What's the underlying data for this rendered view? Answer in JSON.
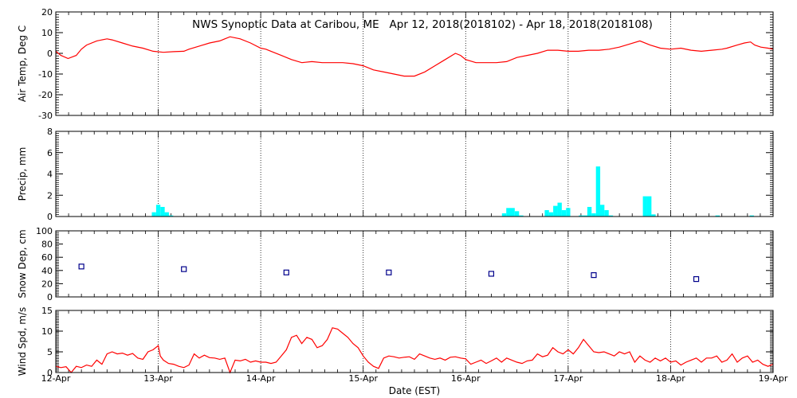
{
  "title": "NWS Synoptic Data at Caribou, ME   Apr 12, 2018(2018102) - Apr 18, 2018(2018108)",
  "xlabel": "Date (EST)",
  "x_ticks": [
    "12-Apr",
    "13-Apr",
    "14-Apr",
    "15-Apr",
    "16-Apr",
    "17-Apr",
    "18-Apr",
    "19-Apr"
  ],
  "colors": {
    "temp": "#ff0000",
    "precip": "#00ffff",
    "snow": "#00008b",
    "wind": "#ff0000",
    "axis": "#000000"
  },
  "chart_data": [
    {
      "type": "line",
      "ylabel": "Air Temp, Deg C",
      "ylim": [
        -30,
        20
      ],
      "yticks": [
        -30,
        -20,
        -10,
        0,
        10,
        20
      ],
      "x_unit": "days since 12-Apr 00:00 EST",
      "series": [
        {
          "points": [
            [
              0,
              1
            ],
            [
              0.05,
              -1
            ],
            [
              0.12,
              -2.5
            ],
            [
              0.2,
              -1
            ],
            [
              0.25,
              2
            ],
            [
              0.3,
              4
            ],
            [
              0.4,
              6
            ],
            [
              0.5,
              7
            ],
            [
              0.55,
              6.5
            ],
            [
              0.65,
              5
            ],
            [
              0.75,
              3.5
            ],
            [
              0.85,
              2.5
            ],
            [
              0.95,
              1
            ],
            [
              1.05,
              0.5
            ],
            [
              1.15,
              0.8
            ],
            [
              1.25,
              1
            ],
            [
              1.3,
              2
            ],
            [
              1.4,
              3.5
            ],
            [
              1.5,
              5
            ],
            [
              1.6,
              6
            ],
            [
              1.65,
              7
            ],
            [
              1.7,
              8
            ],
            [
              1.8,
              7
            ],
            [
              1.9,
              5
            ],
            [
              2.0,
              2.5
            ],
            [
              2.05,
              2
            ],
            [
              2.1,
              1
            ],
            [
              2.2,
              -1
            ],
            [
              2.3,
              -3
            ],
            [
              2.4,
              -4.5
            ],
            [
              2.5,
              -4
            ],
            [
              2.6,
              -4.5
            ],
            [
              2.7,
              -4.5
            ],
            [
              2.8,
              -4.5
            ],
            [
              2.9,
              -5
            ],
            [
              3.0,
              -6
            ],
            [
              3.1,
              -8
            ],
            [
              3.2,
              -9
            ],
            [
              3.3,
              -10
            ],
            [
              3.4,
              -11
            ],
            [
              3.5,
              -11
            ],
            [
              3.6,
              -9
            ],
            [
              3.7,
              -6
            ],
            [
              3.8,
              -3
            ],
            [
              3.9,
              0
            ],
            [
              3.95,
              -1
            ],
            [
              4.0,
              -3
            ],
            [
              4.1,
              -4.5
            ],
            [
              4.2,
              -4.5
            ],
            [
              4.3,
              -4.5
            ],
            [
              4.4,
              -4
            ],
            [
              4.5,
              -2
            ],
            [
              4.6,
              -1
            ],
            [
              4.7,
              0
            ],
            [
              4.8,
              1.5
            ],
            [
              4.9,
              1.5
            ],
            [
              5.0,
              1
            ],
            [
              5.1,
              1
            ],
            [
              5.2,
              1.5
            ],
            [
              5.3,
              1.5
            ],
            [
              5.4,
              2
            ],
            [
              5.5,
              3
            ],
            [
              5.6,
              4.5
            ],
            [
              5.7,
              6
            ],
            [
              5.8,
              4
            ],
            [
              5.9,
              2.5
            ],
            [
              6.0,
              2
            ],
            [
              6.1,
              2.5
            ],
            [
              6.2,
              1.5
            ],
            [
              6.3,
              1
            ],
            [
              6.4,
              1.5
            ],
            [
              6.5,
              2
            ],
            [
              6.55,
              2.5
            ],
            [
              6.65,
              4
            ],
            [
              6.72,
              5
            ],
            [
              6.78,
              5.5
            ],
            [
              6.82,
              4
            ],
            [
              6.88,
              3
            ],
            [
              6.95,
              2.5
            ],
            [
              7.0,
              2
            ]
          ]
        }
      ]
    },
    {
      "type": "bar",
      "ylabel": "Precip, mm",
      "ylim": [
        0,
        8
      ],
      "yticks": [
        0,
        2,
        4,
        6,
        8
      ],
      "x_unit": "days since 12-Apr 00:00 EST",
      "bar_width_days": 0.0417,
      "series": [
        {
          "points": [
            [
              0.958,
              0.4
            ],
            [
              1.0,
              1.1
            ],
            [
              1.042,
              0.9
            ],
            [
              1.083,
              0.4
            ],
            [
              1.125,
              0.1
            ],
            [
              4.375,
              0.3
            ],
            [
              4.417,
              0.8
            ],
            [
              4.458,
              0.8
            ],
            [
              4.5,
              0.5
            ],
            [
              4.542,
              0.1
            ],
            [
              4.792,
              0.6
            ],
            [
              4.833,
              0.4
            ],
            [
              4.875,
              1.0
            ],
            [
              4.917,
              1.3
            ],
            [
              4.958,
              0.6
            ],
            [
              5.0,
              0.8
            ],
            [
              5.125,
              0.1
            ],
            [
              5.167,
              0.1
            ],
            [
              5.208,
              0.9
            ],
            [
              5.25,
              0.3
            ],
            [
              5.292,
              4.7
            ],
            [
              5.333,
              1.1
            ],
            [
              5.375,
              0.6
            ],
            [
              5.417,
              0.1
            ],
            [
              5.75,
              1.9
            ],
            [
              5.792,
              1.9
            ],
            [
              5.833,
              0.2
            ],
            [
              6.458,
              0.1
            ],
            [
              6.792,
              0.1
            ]
          ]
        }
      ]
    },
    {
      "type": "scatter",
      "ylabel": "Snow Dep, cm",
      "ylim": [
        0,
        100
      ],
      "yticks": [
        0,
        20,
        40,
        60,
        80,
        100
      ],
      "x_unit": "days since 12-Apr 00:00 EST",
      "series": [
        {
          "points": [
            [
              0.25,
              46
            ],
            [
              1.25,
              42
            ],
            [
              2.25,
              37
            ],
            [
              3.25,
              37
            ],
            [
              4.25,
              35
            ],
            [
              5.25,
              33
            ],
            [
              6.25,
              27
            ]
          ]
        }
      ]
    },
    {
      "type": "line",
      "ylabel": "Wind Spd, m/s",
      "ylim": [
        0,
        15
      ],
      "yticks": [
        0,
        5,
        10,
        15
      ],
      "x_unit": "days since 12-Apr 00:00 EST",
      "series": [
        {
          "points": [
            [
              0,
              1.5
            ],
            [
              0.05,
              1.2
            ],
            [
              0.1,
              1.4
            ],
            [
              0.15,
              0
            ],
            [
              0.2,
              1.5
            ],
            [
              0.25,
              1.2
            ],
            [
              0.3,
              1.8
            ],
            [
              0.35,
              1.5
            ],
            [
              0.4,
              3
            ],
            [
              0.45,
              2
            ],
            [
              0.5,
              4.5
            ],
            [
              0.55,
              5
            ],
            [
              0.6,
              4.5
            ],
            [
              0.65,
              4.7
            ],
            [
              0.7,
              4.2
            ],
            [
              0.75,
              4.6
            ],
            [
              0.8,
              3.5
            ],
            [
              0.85,
              3.2
            ],
            [
              0.9,
              5
            ],
            [
              0.95,
              5.5
            ],
            [
              1.0,
              6.5
            ],
            [
              1.02,
              4
            ],
            [
              1.05,
              3
            ],
            [
              1.1,
              2.2
            ],
            [
              1.15,
              2
            ],
            [
              1.2,
              1.5
            ],
            [
              1.25,
              1.2
            ],
            [
              1.3,
              1.8
            ],
            [
              1.35,
              4.5
            ],
            [
              1.4,
              3.5
            ],
            [
              1.45,
              4.2
            ],
            [
              1.5,
              3.6
            ],
            [
              1.55,
              3.5
            ],
            [
              1.6,
              3.2
            ],
            [
              1.65,
              3.5
            ],
            [
              1.7,
              0
            ],
            [
              1.75,
              3
            ],
            [
              1.8,
              2.8
            ],
            [
              1.85,
              3.2
            ],
            [
              1.9,
              2.5
            ],
            [
              1.95,
              2.8
            ],
            [
              2.0,
              2.5
            ],
            [
              2.05,
              2.5
            ],
            [
              2.1,
              2.2
            ],
            [
              2.15,
              2.5
            ],
            [
              2.2,
              4
            ],
            [
              2.25,
              5.5
            ],
            [
              2.3,
              8.5
            ],
            [
              2.35,
              9
            ],
            [
              2.4,
              7
            ],
            [
              2.45,
              8.5
            ],
            [
              2.5,
              8
            ],
            [
              2.55,
              6
            ],
            [
              2.6,
              6.5
            ],
            [
              2.65,
              8
            ],
            [
              2.7,
              10.8
            ],
            [
              2.75,
              10.5
            ],
            [
              2.8,
              9.5
            ],
            [
              2.85,
              8.5
            ],
            [
              2.9,
              7
            ],
            [
              2.95,
              6
            ],
            [
              3.0,
              4
            ],
            [
              3.05,
              2.5
            ],
            [
              3.1,
              1.5
            ],
            [
              3.15,
              1
            ],
            [
              3.2,
              3.5
            ],
            [
              3.25,
              4
            ],
            [
              3.3,
              3.8
            ],
            [
              3.35,
              3.5
            ],
            [
              3.4,
              3.7
            ],
            [
              3.45,
              3.8
            ],
            [
              3.5,
              3.2
            ],
            [
              3.55,
              4.5
            ],
            [
              3.6,
              4
            ],
            [
              3.65,
              3.5
            ],
            [
              3.7,
              3.2
            ],
            [
              3.75,
              3.5
            ],
            [
              3.8,
              3
            ],
            [
              3.85,
              3.7
            ],
            [
              3.9,
              3.8
            ],
            [
              3.95,
              3.5
            ],
            [
              4.0,
              3.3
            ],
            [
              4.05,
              2
            ],
            [
              4.1,
              2.5
            ],
            [
              4.15,
              3
            ],
            [
              4.2,
              2.2
            ],
            [
              4.25,
              2.8
            ],
            [
              4.3,
              3.5
            ],
            [
              4.35,
              2.5
            ],
            [
              4.4,
              3.5
            ],
            [
              4.45,
              3
            ],
            [
              4.5,
              2.5
            ],
            [
              4.55,
              2.2
            ],
            [
              4.6,
              2.8
            ],
            [
              4.65,
              3
            ],
            [
              4.7,
              4.5
            ],
            [
              4.75,
              3.8
            ],
            [
              4.8,
              4.2
            ],
            [
              4.85,
              6
            ],
            [
              4.9,
              5
            ],
            [
              4.95,
              4.5
            ],
            [
              5.0,
              5.5
            ],
            [
              5.05,
              4.5
            ],
            [
              5.1,
              6
            ],
            [
              5.15,
              8
            ],
            [
              5.2,
              6.5
            ],
            [
              5.25,
              5
            ],
            [
              5.3,
              4.8
            ],
            [
              5.35,
              5
            ],
            [
              5.4,
              4.5
            ],
            [
              5.45,
              4
            ],
            [
              5.5,
              5
            ],
            [
              5.55,
              4.5
            ],
            [
              5.6,
              5
            ],
            [
              5.65,
              2.5
            ],
            [
              5.7,
              4
            ],
            [
              5.75,
              3
            ],
            [
              5.8,
              2.5
            ],
            [
              5.85,
              3.5
            ],
            [
              5.9,
              2.8
            ],
            [
              5.95,
              3.5
            ],
            [
              6.0,
              2.5
            ],
            [
              6.05,
              2.8
            ],
            [
              6.1,
              1.8
            ],
            [
              6.15,
              2.5
            ],
            [
              6.2,
              3
            ],
            [
              6.25,
              3.5
            ],
            [
              6.3,
              2.5
            ],
            [
              6.35,
              3.5
            ],
            [
              6.4,
              3.5
            ],
            [
              6.45,
              4
            ],
            [
              6.5,
              2.5
            ],
            [
              6.55,
              3
            ],
            [
              6.6,
              4.5
            ],
            [
              6.65,
              2.5
            ],
            [
              6.7,
              3.5
            ],
            [
              6.75,
              4
            ],
            [
              6.8,
              2.5
            ],
            [
              6.85,
              3
            ],
            [
              6.9,
              2
            ],
            [
              6.95,
              1.5
            ],
            [
              7.0,
              2
            ]
          ]
        }
      ]
    }
  ]
}
